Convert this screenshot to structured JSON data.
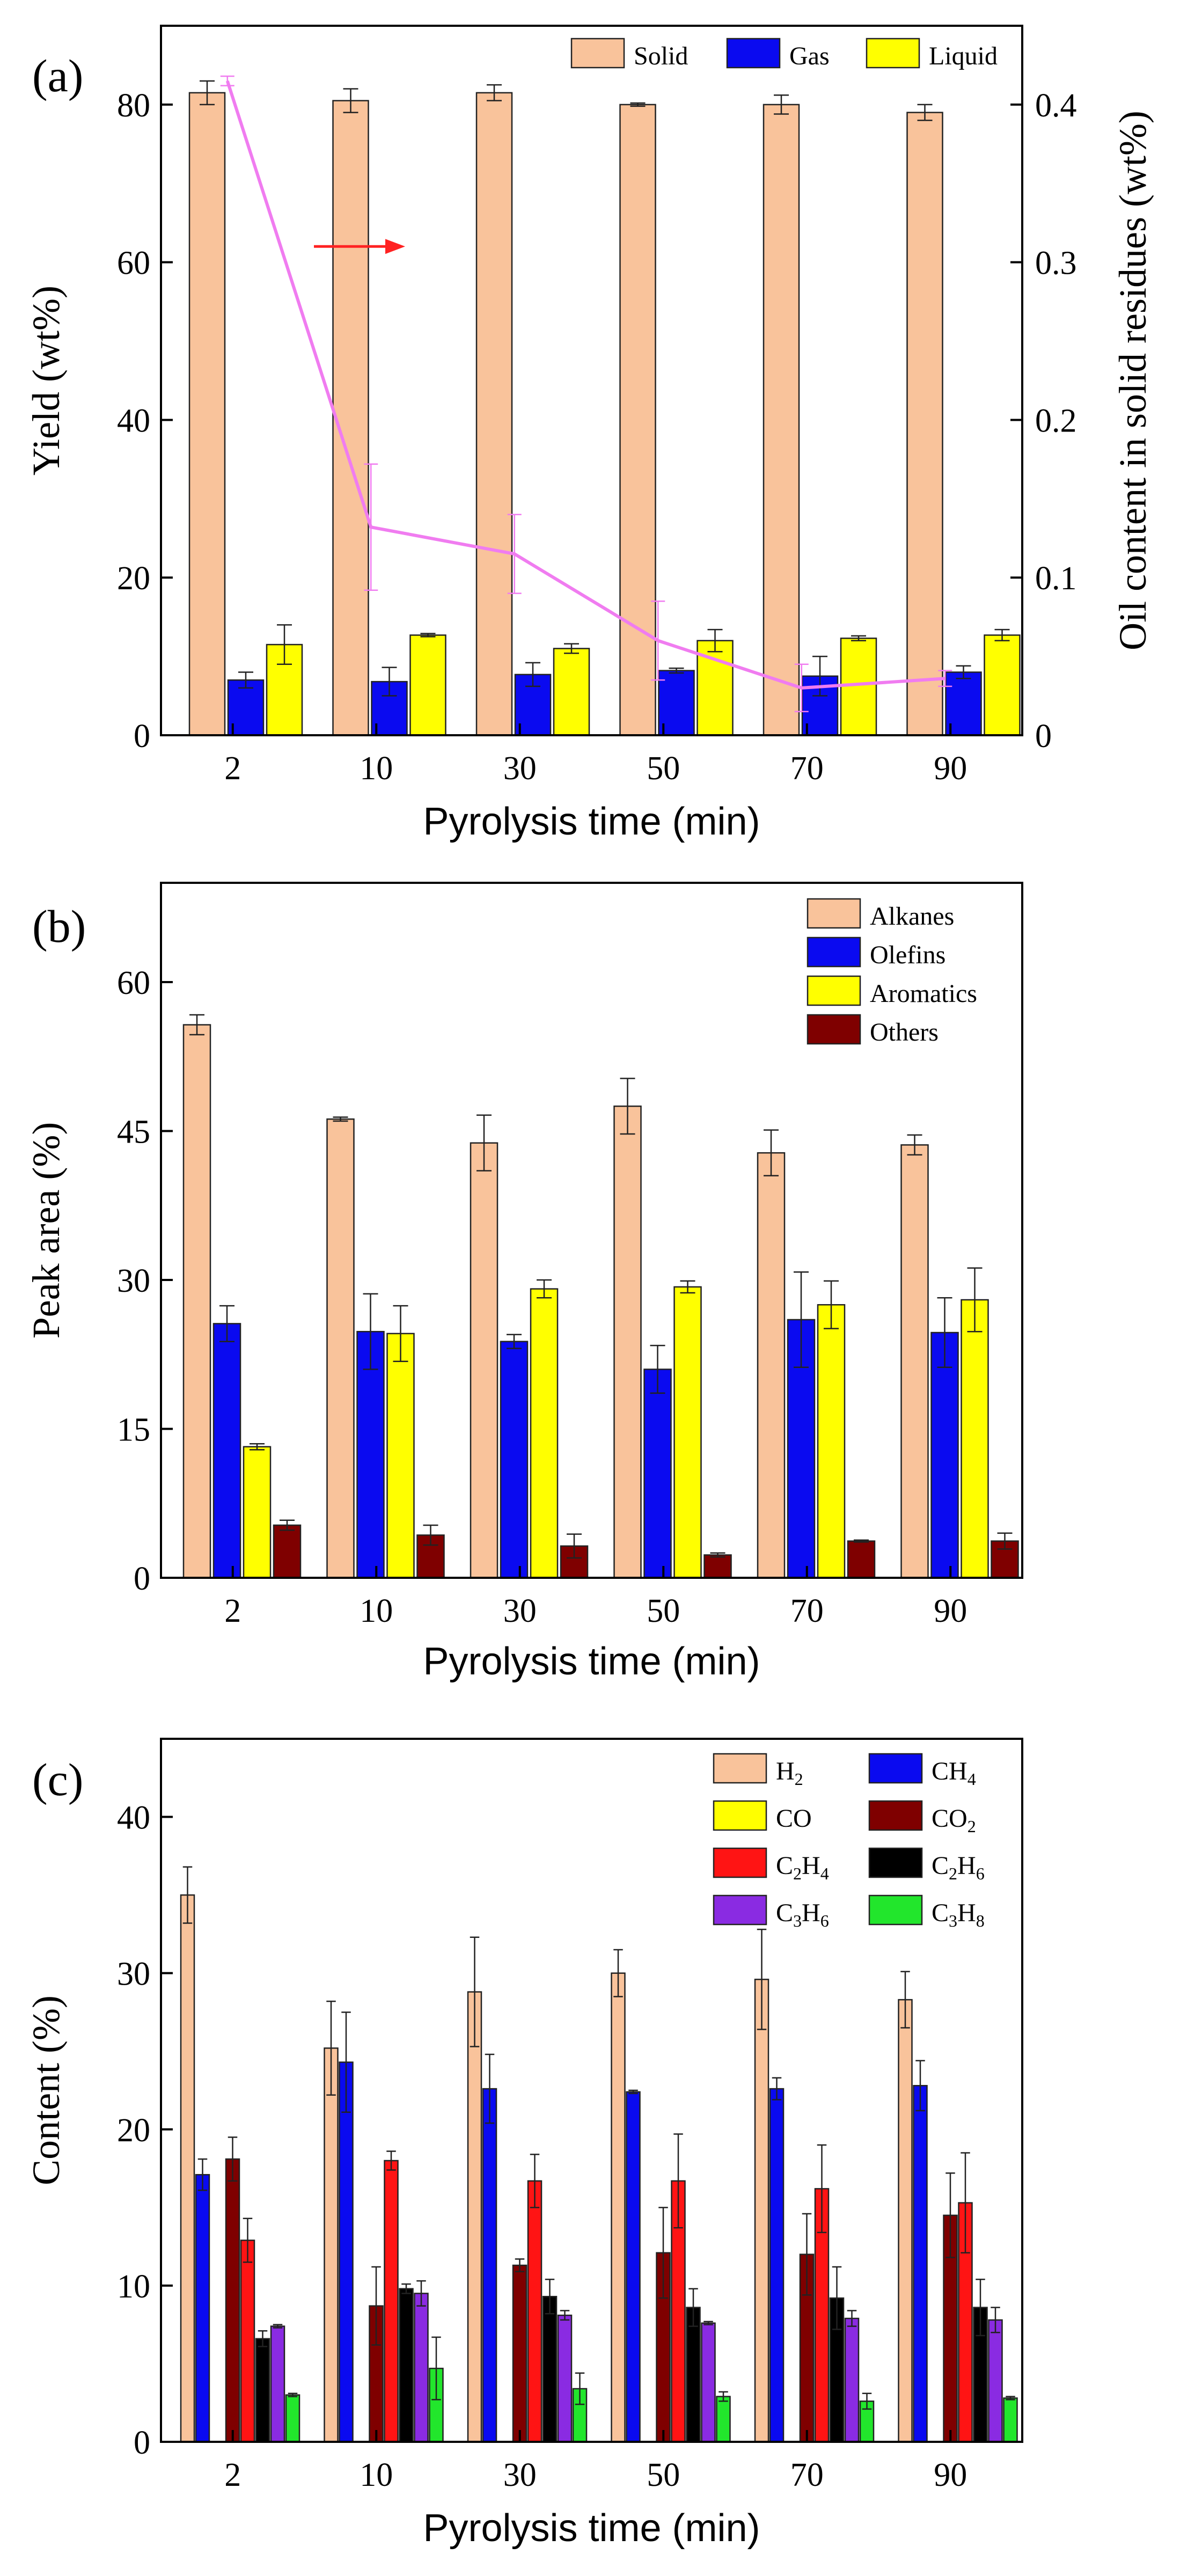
{
  "colors": {
    "solid": "#F9C39B",
    "alkanes": "#F9C39B",
    "h2": "#F9C39B",
    "blue": "#0A0AF0",
    "yellow": "#FFFF00",
    "darkred": "#7F0000",
    "red": "#FF1414",
    "black": "#000000",
    "purple": "#8A2BE2",
    "green": "#22E62C",
    "oil_line": "#F07CF0",
    "arrow": "#FF2222",
    "axis": "#000000"
  },
  "chart_data": [
    {
      "id": "a",
      "panel_label": "(a)",
      "type": "bar",
      "xlabel": "Pyrolysis time (min)",
      "ylabel": "Yield (wt%)",
      "ylabel_right": "Oil content in solid residues (wt%)",
      "categories": [
        "2",
        "10",
        "30",
        "50",
        "70",
        "90"
      ],
      "ylim": [
        0,
        90
      ],
      "yticks": [
        0,
        20,
        40,
        60,
        80
      ],
      "y2lim": [
        0,
        0.45
      ],
      "y2ticks": [
        0,
        0.1,
        0.2,
        0.3,
        0.4
      ],
      "y2ticklabels": [
        "0",
        "0.1",
        "0.2",
        "0.3",
        "0.4"
      ],
      "legend": "top-right",
      "legend_layout": "row",
      "series": [
        {
          "name": "Solid",
          "color": "#F9C39B",
          "values": [
            81.5,
            80.5,
            81.5,
            80.0,
            80.0,
            79.0
          ],
          "errors": [
            1.5,
            1.5,
            1.0,
            0.2,
            1.2,
            1.0
          ]
        },
        {
          "name": "Gas",
          "color": "#0A0AF0",
          "values": [
            7.0,
            6.8,
            7.7,
            8.2,
            7.5,
            8.0
          ],
          "errors": [
            1.0,
            1.8,
            1.5,
            0.3,
            2.5,
            0.8
          ]
        },
        {
          "name": "Liquid",
          "color": "#FFFF00",
          "values": [
            11.5,
            12.7,
            11.0,
            12.0,
            12.3,
            12.7
          ],
          "errors": [
            2.5,
            0.2,
            0.6,
            1.4,
            0.3,
            0.7
          ]
        }
      ],
      "line_series": {
        "name": "Oil content in solid residues",
        "axis": "right",
        "color": "#F07CF0",
        "values": [
          0.415,
          0.132,
          0.115,
          0.06,
          0.03,
          0.036
        ],
        "errors": [
          0.003,
          0.04,
          0.025,
          0.025,
          0.015,
          0.005
        ]
      },
      "annotation": "arrow pointing to the right axis"
    },
    {
      "id": "b",
      "panel_label": "(b)",
      "type": "bar",
      "xlabel": "Pyrolysis time (min)",
      "ylabel": "Peak area (%)",
      "categories": [
        "2",
        "10",
        "30",
        "50",
        "70",
        "90"
      ],
      "ylim": [
        0,
        70
      ],
      "yticks": [
        0,
        15,
        30,
        45,
        60
      ],
      "legend": "top-right",
      "legend_layout": "column",
      "series": [
        {
          "name": "Alkanes",
          "color": "#F9C39B",
          "values": [
            55.7,
            46.2,
            43.8,
            47.5,
            42.8,
            43.6
          ],
          "errors": [
            1.0,
            0.2,
            2.8,
            2.8,
            2.3,
            1.0
          ]
        },
        {
          "name": "Olefins",
          "color": "#0A0AF0",
          "values": [
            25.6,
            24.8,
            23.8,
            21.0,
            26.0,
            24.7
          ],
          "errors": [
            1.8,
            3.8,
            0.7,
            2.4,
            4.8,
            3.5
          ]
        },
        {
          "name": "Aromatics",
          "color": "#FFFF00",
          "values": [
            13.2,
            24.6,
            29.1,
            29.3,
            27.5,
            28.0
          ],
          "errors": [
            0.3,
            2.8,
            0.9,
            0.6,
            2.4,
            3.2
          ]
        },
        {
          "name": "Others",
          "color": "#7F0000",
          "values": [
            5.3,
            4.3,
            3.2,
            2.3,
            3.7,
            3.7
          ],
          "errors": [
            0.5,
            1.0,
            1.2,
            0.2,
            0.1,
            0.8
          ]
        }
      ]
    },
    {
      "id": "c",
      "panel_label": "(c)",
      "type": "bar",
      "xlabel": "Pyrolysis time (min)",
      "ylabel": "Content (%)",
      "categories": [
        "2",
        "10",
        "30",
        "50",
        "70",
        "90"
      ],
      "ylim": [
        0,
        45
      ],
      "yticks": [
        0,
        10,
        20,
        30,
        40
      ],
      "legend": "top-right",
      "legend_layout": "two-column",
      "series": [
        {
          "name": "H2",
          "name_base": "H",
          "name_sub": "2",
          "color": "#F9C39B",
          "values": [
            35.0,
            25.2,
            28.8,
            30.0,
            29.6,
            28.3
          ],
          "errors": [
            1.8,
            3.0,
            3.5,
            1.5,
            3.2,
            1.8
          ]
        },
        {
          "name": "CH4",
          "name_base": "CH",
          "name_sub": "4",
          "color": "#0A0AF0",
          "values": [
            17.1,
            24.3,
            22.6,
            22.4,
            22.6,
            22.8
          ],
          "errors": [
            1.0,
            3.2,
            2.2,
            0.1,
            0.7,
            1.6
          ]
        },
        {
          "name": "CO",
          "name_base": "CO",
          "name_sub": "",
          "color": "#FFFF00",
          "values": [
            0,
            0,
            0,
            0,
            0,
            0
          ],
          "errors": [
            0,
            0,
            0,
            0,
            0,
            0
          ]
        },
        {
          "name": "CO2",
          "name_base": "CO",
          "name_sub": "2",
          "color": "#7F0000",
          "values": [
            18.1,
            8.7,
            11.3,
            12.1,
            12.0,
            14.5
          ],
          "errors": [
            1.4,
            2.5,
            0.4,
            2.9,
            2.6,
            2.7
          ]
        },
        {
          "name": "C2H4",
          "name_base": "C",
          "name_sub": "2",
          "name_base2": "H",
          "name_sub2": "4",
          "color": "#FF1414",
          "values": [
            12.9,
            18.0,
            16.7,
            16.7,
            16.2,
            15.3
          ],
          "errors": [
            1.4,
            0.6,
            1.7,
            3.0,
            2.8,
            3.2
          ]
        },
        {
          "name": "C2H6",
          "name_base": "C",
          "name_sub": "2",
          "name_base2": "H",
          "name_sub2": "6",
          "color": "#000000",
          "values": [
            6.6,
            9.8,
            9.3,
            8.6,
            9.2,
            8.6
          ],
          "errors": [
            0.5,
            0.3,
            1.1,
            1.2,
            2.0,
            1.8
          ]
        },
        {
          "name": "C3H6",
          "name_base": "C",
          "name_sub": "3",
          "name_base2": "H",
          "name_sub2": "6",
          "color": "#8A2BE2",
          "values": [
            7.4,
            9.5,
            8.1,
            7.6,
            7.9,
            7.8
          ],
          "errors": [
            0.1,
            0.8,
            0.3,
            0.1,
            0.5,
            0.8
          ]
        },
        {
          "name": "C3H8",
          "name_base": "C",
          "name_sub": "3",
          "name_base2": "H",
          "name_sub2": "8",
          "color": "#22E62C",
          "values": [
            3.0,
            4.7,
            3.4,
            2.9,
            2.6,
            2.8
          ],
          "errors": [
            0.1,
            2.0,
            1.0,
            0.3,
            0.5,
            0.1
          ]
        }
      ]
    }
  ]
}
